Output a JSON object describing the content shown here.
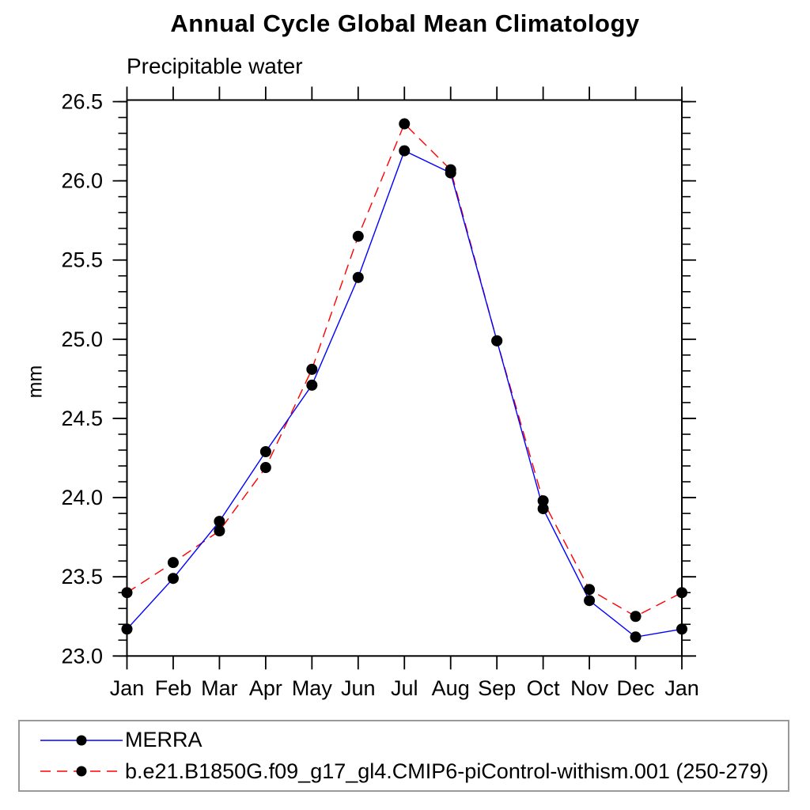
{
  "title": "Annual Cycle Global Mean Climatology",
  "chart_data": {
    "type": "line",
    "title": "Annual Cycle Global Mean Climatology",
    "subtitle": "Precipitable water",
    "xlabel": "",
    "ylabel": "mm",
    "categories": [
      "Jan",
      "Feb",
      "Mar",
      "Apr",
      "May",
      "Jun",
      "Jul",
      "Aug",
      "Sep",
      "Oct",
      "Nov",
      "Dec",
      "Jan"
    ],
    "ylim": [
      23.0,
      26.51
    ],
    "y_major_ticks": [
      23.0,
      23.5,
      24.0,
      24.5,
      25.0,
      25.5,
      26.0,
      26.5
    ],
    "y_tick_labels": [
      "23.0",
      "23.5",
      "24.0",
      "24.5",
      "25.0",
      "25.5",
      "26.0",
      "26.5"
    ],
    "y_minor_step": 0.1,
    "grid": false,
    "legend_position": "bottom-left-box",
    "series": [
      {
        "name": "MERRA",
        "color": "#0000ff",
        "line_style": "solid",
        "marker": "filled-circle",
        "marker_color": "#000000",
        "values": [
          23.17,
          23.49,
          23.85,
          24.29,
          24.71,
          25.39,
          26.19,
          26.05,
          24.99,
          23.93,
          23.35,
          23.12,
          23.17
        ]
      },
      {
        "name": "b.e21.B1850G.f09_g17_gl4.CMIP6-piControl-withism.001 (250-279)",
        "color": "#ff0000",
        "line_style": "dashed",
        "marker": "filled-circle",
        "marker_color": "#000000",
        "values": [
          23.4,
          23.59,
          23.79,
          24.19,
          24.81,
          25.65,
          26.36,
          26.07,
          24.99,
          23.98,
          23.42,
          23.25,
          23.4
        ]
      }
    ]
  },
  "colors": {
    "axis": "#000000",
    "text": "#000000",
    "legend_border": "#999999",
    "background": "#ffffff"
  }
}
